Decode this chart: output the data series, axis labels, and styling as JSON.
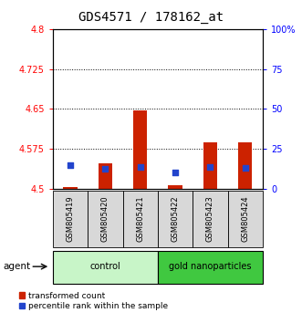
{
  "title": "GDS4571 / 178162_at",
  "samples": [
    "GSM805419",
    "GSM805420",
    "GSM805421",
    "GSM805422",
    "GSM805423",
    "GSM805424"
  ],
  "red_values": [
    4.504,
    4.548,
    4.648,
    4.507,
    4.588,
    4.587
  ],
  "blue_percentiles": [
    15.0,
    12.5,
    13.5,
    10.5,
    13.5,
    13.0
  ],
  "baseline": 4.5,
  "ylim_left": [
    4.5,
    4.8
  ],
  "ylim_right": [
    0,
    100
  ],
  "yticks_left": [
    4.5,
    4.575,
    4.65,
    4.725,
    4.8
  ],
  "yticks_right": [
    0,
    25,
    50,
    75,
    100
  ],
  "ytick_labels_left": [
    "4.5",
    "4.575",
    "4.65",
    "4.725",
    "4.8"
  ],
  "ytick_labels_right": [
    "0",
    "25",
    "50",
    "75",
    "100%"
  ],
  "hlines": [
    4.725,
    4.65,
    4.575
  ],
  "groups": [
    {
      "label": "control",
      "indices": [
        0,
        1,
        2
      ],
      "color": "#c8f5c8"
    },
    {
      "label": "gold nanoparticles",
      "indices": [
        3,
        4,
        5
      ],
      "color": "#40c840"
    }
  ],
  "agent_label": "agent",
  "bar_color": "#cc2200",
  "point_color": "#2244cc",
  "cell_color": "#d8d8d8",
  "legend_red_label": "transformed count",
  "legend_blue_label": "percentile rank within the sample",
  "title_fontsize": 10,
  "tick_fontsize": 7,
  "label_fontsize": 7,
  "sample_fontsize": 6
}
